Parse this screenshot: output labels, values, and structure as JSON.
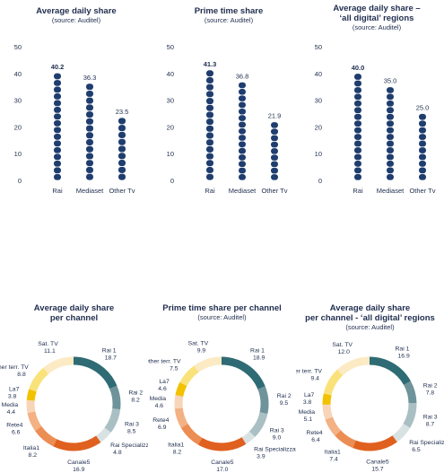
{
  "bar_panels": [
    {
      "title": "Average daily share",
      "subtitle": "(source: Auditel)"
    },
    {
      "title": "Prime time share",
      "subtitle": "(source: Auditel)"
    },
    {
      "title": "Average daily share –\n‘all digital’ regions",
      "subtitle": "(source: Auditel)"
    }
  ],
  "donut_panels": [
    {
      "title": "Average daily share\nper channel",
      "subtitle": ""
    },
    {
      "title": "Prime time share per channel",
      "subtitle": "(source: Auditel)"
    },
    {
      "title": "Average daily share\nper channel - ‘all digital’ regions",
      "subtitle": "(source: Auditel)"
    }
  ],
  "colors": {
    "bar": "#1f3d6e",
    "text": "#1f2d4e",
    "Rai 1": "#2f6b74",
    "Rai 2": "#6f939a",
    "Rai 3": "#a9bfc3",
    "Rai Specializzate": "#d9e2e3",
    "Canale5": "#e0601f",
    "Italia1": "#ec8d53",
    "Rete4": "#f3b184",
    "Spec. Media": "#f8d5b8",
    "La7": "#f2c100",
    "Other terr. TV": "#f9e27a",
    "Sat. TV": "#fbeac3"
  },
  "chart_data": [
    {
      "type": "bar",
      "categories": [
        "Rai",
        "Mediaset",
        "Other Tv"
      ],
      "values": [
        40.2,
        36.3,
        23.5
      ],
      "ylim": [
        0,
        50
      ],
      "yticks": [
        0,
        10,
        20,
        30,
        40,
        50
      ]
    },
    {
      "type": "bar",
      "categories": [
        "Rai",
        "Mediaset",
        "Other Tv"
      ],
      "values": [
        41.3,
        36.8,
        21.9
      ],
      "ylim": [
        0,
        50
      ],
      "yticks": [
        0,
        10,
        20,
        30,
        40,
        50
      ]
    },
    {
      "type": "bar",
      "categories": [
        "Rai",
        "Mediaset",
        "Other Tv"
      ],
      "values": [
        40.0,
        35.0,
        25.0
      ],
      "ylim": [
        0,
        50
      ],
      "yticks": [
        0,
        10,
        20,
        30,
        40,
        50
      ]
    },
    {
      "type": "pie",
      "labels": [
        "Rai 1",
        "Rai 2",
        "Rai 3",
        "Rai Specializzate",
        "Canale5",
        "Italia1",
        "Rete4",
        "Spec. Media",
        "La7",
        "Other terr. TV",
        "Sat. TV"
      ],
      "values": [
        18.7,
        8.2,
        8.5,
        4.8,
        16.9,
        8.2,
        6.6,
        4.4,
        3.8,
        8.8,
        11.1
      ]
    },
    {
      "type": "pie",
      "labels": [
        "Rai 1",
        "Rai 2",
        "Rai 3",
        "Rai Specializzate",
        "Canale5",
        "Italia1",
        "Rete4",
        "Spec. Media",
        "La7",
        "Other terr. TV",
        "Sat. TV"
      ],
      "values": [
        18.9,
        9.5,
        9.0,
        3.9,
        17.0,
        8.2,
        6.9,
        4.6,
        4.6,
        7.5,
        9.9
      ]
    },
    {
      "type": "pie",
      "labels": [
        "Rai 1",
        "Rai 2",
        "Rai 3",
        "Rai Specializzate",
        "Canale5",
        "Italia1",
        "Rete4",
        "Spec. Media",
        "La7",
        "Other terr. TV",
        "Sat. TV"
      ],
      "values": [
        16.9,
        7.8,
        8.7,
        6.5,
        15.7,
        7.4,
        6.4,
        5.1,
        3.8,
        9.4,
        12.0
      ]
    }
  ]
}
